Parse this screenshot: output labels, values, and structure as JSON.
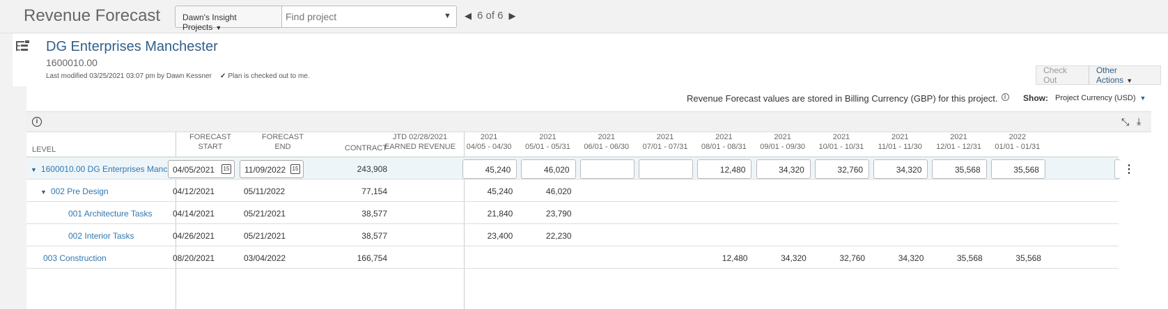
{
  "header": {
    "app_title": "Revenue Forecast",
    "project_selector": "Dawn's Insight Projects",
    "search_placeholder": "Find project",
    "pager": "6 of 6"
  },
  "project": {
    "name": "DG Enterprises Manchester",
    "number": "1600010.00",
    "modified": "Last modified 03/25/2021 03:07 pm by Dawn Kessner",
    "checked_out": "Plan is checked out to me."
  },
  "actions": {
    "check_out": "Check Out",
    "other_actions": "Other Actions"
  },
  "notice": "Revenue Forecast values are stored in Billing Currency (GBP) for this project.",
  "show": {
    "label": "Show:",
    "value": "Project Currency (USD)"
  },
  "columns": {
    "level": "LEVEL",
    "forecast_start": [
      "FORECAST",
      "START"
    ],
    "forecast_end": [
      "FORECAST",
      "END"
    ],
    "contract": "CONTRACT",
    "jtd": [
      "JTD 02/28/2021",
      "EARNED REVENUE"
    ],
    "periods": [
      {
        "year": "2021",
        "range": "04/05 - 04/30"
      },
      {
        "year": "2021",
        "range": "05/01 - 05/31"
      },
      {
        "year": "2021",
        "range": "06/01 - 06/30"
      },
      {
        "year": "2021",
        "range": "07/01 - 07/31"
      },
      {
        "year": "2021",
        "range": "08/01 - 08/31"
      },
      {
        "year": "2021",
        "range": "09/01 - 09/30"
      },
      {
        "year": "2021",
        "range": "10/01 - 10/31"
      },
      {
        "year": "2021",
        "range": "11/01 - 11/30"
      },
      {
        "year": "2021",
        "range": "12/01 - 12/31"
      },
      {
        "year": "2022",
        "range": "01/01 - 01/31"
      }
    ]
  },
  "rows": [
    {
      "level": "1600010.00 DG Enterprises Manc",
      "start": "04/05/2021",
      "end": "11/09/2022",
      "contract": "243,908",
      "jtd": "",
      "periods": [
        "45,240",
        "46,020",
        "",
        "",
        "12,480",
        "34,320",
        "32,760",
        "34,320",
        "35,568",
        "35,568"
      ]
    },
    {
      "level": "002 Pre Design",
      "start": "04/12/2021",
      "end": "05/11/2022",
      "contract": "77,154",
      "jtd": "",
      "periods": [
        "45,240",
        "46,020",
        "",
        "",
        "",
        "",
        "",
        "",
        "",
        ""
      ]
    },
    {
      "level": "001 Architecture Tasks",
      "start": "04/14/2021",
      "end": "05/21/2021",
      "contract": "38,577",
      "jtd": "",
      "periods": [
        "21,840",
        "23,790",
        "",
        "",
        "",
        "",
        "",
        "",
        "",
        ""
      ]
    },
    {
      "level": "002 Interior Tasks",
      "start": "04/26/2021",
      "end": "05/21/2021",
      "contract": "38,577",
      "jtd": "",
      "periods": [
        "23,400",
        "22,230",
        "",
        "",
        "",
        "",
        "",
        "",
        "",
        ""
      ]
    },
    {
      "level": "003 Construction",
      "start": "08/20/2021",
      "end": "03/04/2022",
      "contract": "166,754",
      "jtd": "",
      "periods": [
        "",
        "",
        "",
        "",
        "12,480",
        "34,320",
        "32,760",
        "34,320",
        "35,568",
        "35,568"
      ]
    }
  ]
}
